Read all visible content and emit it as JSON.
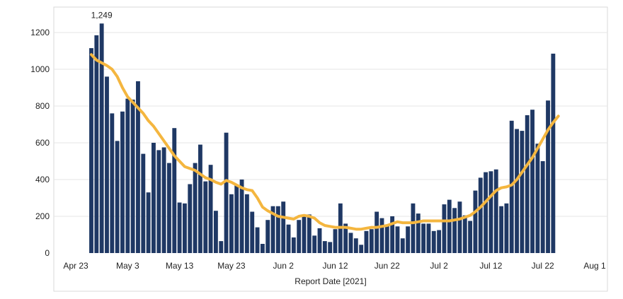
{
  "chart_data": {
    "type": "bar",
    "xlabel": "Report Date [2021]",
    "ylabel": "",
    "ylim": [
      0,
      1300
    ],
    "yticks": [
      0,
      200,
      400,
      600,
      800,
      1000,
      1200
    ],
    "x_start": "2021-04-23",
    "x_end": "2021-08-01",
    "xtick_labels": [
      {
        "date": "2021-04-23",
        "label": "Apr 23"
      },
      {
        "date": "2021-05-03",
        "label": "May 3"
      },
      {
        "date": "2021-05-13",
        "label": "May 13"
      },
      {
        "date": "2021-05-23",
        "label": "May 23"
      },
      {
        "date": "2021-06-02",
        "label": "Jun 2"
      },
      {
        "date": "2021-06-12",
        "label": "Jun 12"
      },
      {
        "date": "2021-06-22",
        "label": "Jun 22"
      },
      {
        "date": "2021-07-02",
        "label": "Jul 2"
      },
      {
        "date": "2021-07-12",
        "label": "Jul 12"
      },
      {
        "date": "2021-07-22",
        "label": "Jul 22"
      },
      {
        "date": "2021-08-01",
        "label": "Aug 1"
      }
    ],
    "first_bar_date": "2021-04-26",
    "grid": "horizontal",
    "colors": {
      "bars": "#1f3864",
      "line": "#f4b63f",
      "grid": "#e6e6e6",
      "frame": "#d9d9d9"
    },
    "series": [
      {
        "type": "bar",
        "values": [
          1115,
          1185,
          1249,
          960,
          760,
          610,
          770,
          840,
          835,
          935,
          540,
          330,
          600,
          560,
          575,
          490,
          680,
          275,
          270,
          375,
          490,
          590,
          390,
          480,
          230,
          65,
          655,
          320,
          370,
          400,
          320,
          225,
          140,
          50,
          180,
          255,
          255,
          280,
          155,
          85,
          180,
          200,
          210,
          95,
          135,
          65,
          60,
          130,
          270,
          160,
          110,
          80,
          45,
          120,
          130,
          225,
          190,
          150,
          200,
          145,
          80,
          145,
          270,
          215,
          160,
          160,
          120,
          125,
          265,
          290,
          245,
          280,
          205,
          175,
          340,
          410,
          440,
          445,
          455,
          255,
          270,
          720,
          675,
          665,
          750,
          780,
          595,
          500,
          830,
          1085
        ]
      },
      {
        "type": "line",
        "values": [
          1080,
          1050,
          1035,
          1020,
          1000,
          960,
          900,
          850,
          820,
          790,
          760,
          720,
          690,
          650,
          610,
          570,
          530,
          500,
          470,
          460,
          450,
          430,
          410,
          400,
          385,
          375,
          395,
          385,
          370,
          355,
          345,
          340,
          300,
          250,
          230,
          215,
          200,
          195,
          190,
          185,
          200,
          205,
          200,
          190,
          165,
          150,
          145,
          140,
          140,
          140,
          135,
          130,
          130,
          135,
          140,
          140,
          145,
          150,
          160,
          170,
          165,
          165,
          165,
          170,
          175,
          175,
          175,
          175,
          175,
          175,
          180,
          185,
          195,
          205,
          225,
          250,
          280,
          310,
          340,
          355,
          360,
          370,
          400,
          440,
          480,
          520,
          570,
          620,
          670,
          710,
          745
        ]
      }
    ],
    "annotations": [
      {
        "bar_index": 2,
        "text": "1,249"
      }
    ]
  }
}
